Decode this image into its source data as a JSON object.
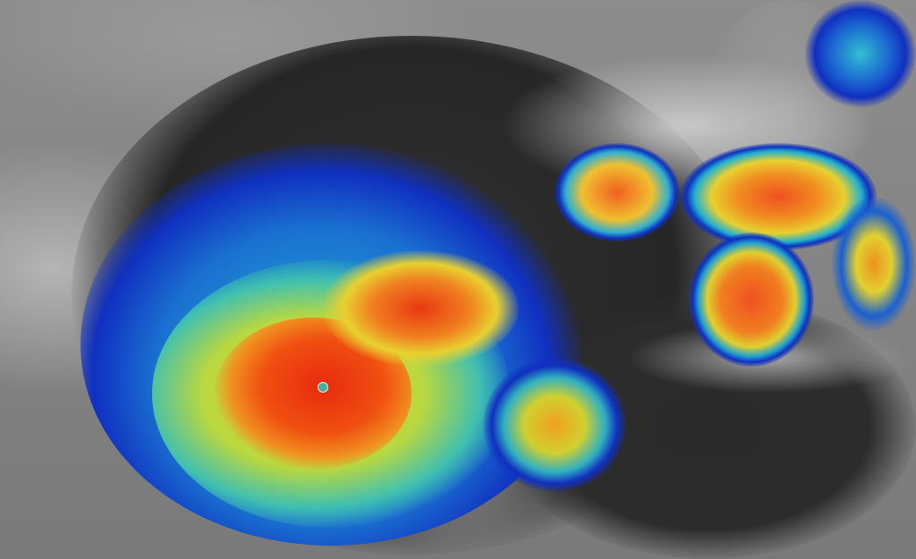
{
  "image": {
    "subject": "satellite-hurricane",
    "colors": {
      "land": "#8a8a8a",
      "sea": "#2a2a2a",
      "cloud_blue": "#1030c0",
      "cloud_cyan": "#30c0d0",
      "cloud_yellow": "#e8e030",
      "cloud_orange": "#f07020",
      "cloud_red": "#e82a10",
      "eye": "#40b0a0"
    }
  }
}
